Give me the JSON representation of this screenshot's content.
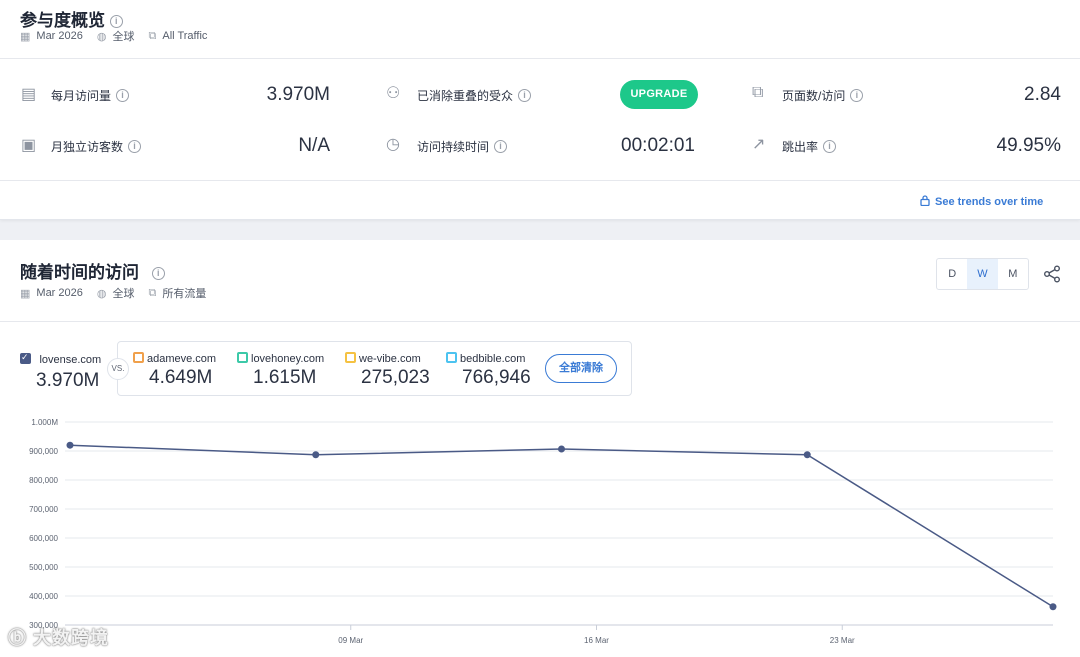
{
  "overview": {
    "title": "参与度概览",
    "meta": {
      "date": "Mar 2026",
      "region": "全球",
      "traffic": "All Traffic"
    },
    "metrics": {
      "monthly_visits": {
        "label": "每月访问量",
        "value": "3.970M"
      },
      "deduplicated_audience": {
        "label": "已消除重叠的受众",
        "button": "UPGRADE"
      },
      "pages_per_visit": {
        "label": "页面数/访问",
        "value": "2.84"
      },
      "monthly_unique": {
        "label": "月独立访客数",
        "value": "N/A"
      },
      "visit_duration": {
        "label": "访问持续时间",
        "value": "00:02:01"
      },
      "bounce_rate": {
        "label": "跳出率",
        "value": "49.95%"
      }
    },
    "trends_link": "See trends over time"
  },
  "visits_over_time": {
    "title": "随着时间的访问",
    "meta": {
      "date": "Mar 2026",
      "region": "全球",
      "traffic": "所有流量"
    },
    "granularity": [
      "D",
      "W",
      "M"
    ],
    "active_granularity": "W",
    "main_site": {
      "domain": "lovense.com",
      "value": "3.970M"
    },
    "vs_label": "VS.",
    "competitors": [
      {
        "domain": "adameve.com",
        "value": "4.649M",
        "color": "#f0a04b"
      },
      {
        "domain": "lovehoney.com",
        "value": "1.615M",
        "color": "#3cc9a8"
      },
      {
        "domain": "we-vibe.com",
        "value": "275,023",
        "color": "#f5c242"
      },
      {
        "domain": "bedbible.com",
        "value": "766,946",
        "color": "#4cc3f0"
      }
    ],
    "clear_all": "全部清除"
  },
  "chart_data": {
    "type": "line",
    "series": [
      {
        "name": "lovense.com",
        "values": [
          920000,
          887000,
          907000,
          887000,
          363000
        ]
      }
    ],
    "y_ticks": [
      "1.000M",
      "900,000",
      "800,000",
      "700,000",
      "600,000",
      "500,000",
      "400,000",
      "300,000"
    ],
    "x_ticks": [
      "09 Mar",
      "16 Mar",
      "23 Mar"
    ],
    "ylim": [
      300000,
      1000000
    ],
    "grid": true,
    "color": "#4a5a86"
  },
  "watermark": "大数跨境"
}
